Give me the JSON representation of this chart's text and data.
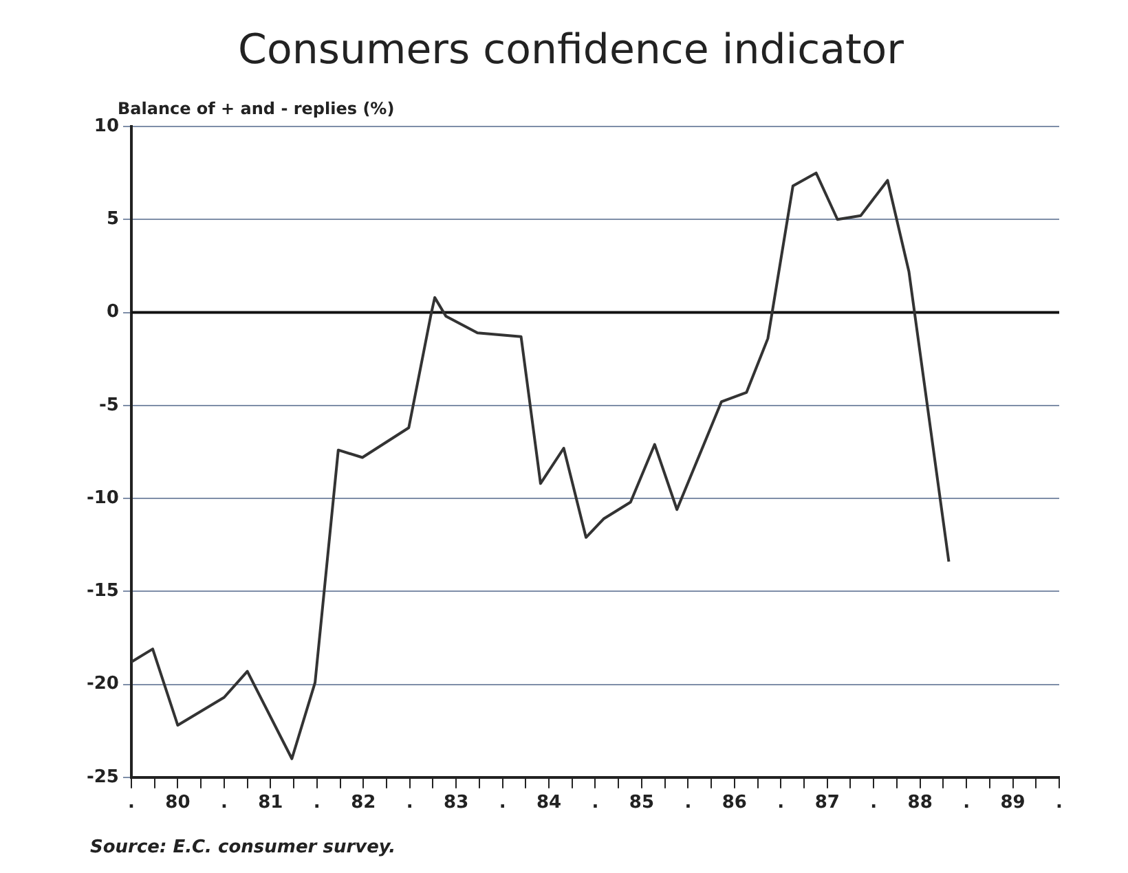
{
  "chart_data": {
    "type": "line",
    "title": "Consumers confidence indicator",
    "ylabel": "Balance of + and - replies (%)",
    "annotations": [
      "Source: E.C. consumer survey."
    ],
    "x": [
      79.5,
      79.73,
      80.0,
      80.5,
      80.75,
      81.23,
      81.48,
      81.73,
      81.99,
      82.49,
      82.73,
      82.77,
      82.89,
      83.23,
      83.7,
      83.91,
      84.16,
      84.4,
      84.59,
      84.88,
      85.14,
      85.38,
      85.86,
      86.13,
      86.36,
      86.63,
      86.88,
      87.11,
      87.36,
      87.65,
      87.88,
      88.31
    ],
    "series": [
      {
        "color": "#333333",
        "values": [
          -18.8,
          -18.1,
          -22.2,
          -20.7,
          -19.3,
          -24.0,
          -19.9,
          -7.4,
          -7.8,
          -6.2,
          -0.1,
          0.8,
          -0.2,
          -1.1,
          -1.3,
          -9.2,
          -7.3,
          -12.1,
          -11.1,
          -10.2,
          -7.1,
          -10.6,
          -4.8,
          -4.3,
          -1.4,
          6.8,
          7.5,
          5.0,
          5.2,
          7.1,
          2.2,
          -13.4
        ]
      }
    ],
    "xlim": [
      79.5,
      89.5
    ],
    "xticks": [
      {
        "value": 79.5,
        "label": "."
      },
      {
        "value": 79.75,
        "label": null
      },
      80,
      {
        "value": 80.25,
        "label": null
      },
      {
        "value": 80.5,
        "label": "."
      },
      {
        "value": 80.75,
        "label": null
      },
      81,
      {
        "value": 81.25,
        "label": null
      },
      {
        "value": 81.5,
        "label": "."
      },
      {
        "value": 81.75,
        "label": null
      },
      82,
      {
        "value": 82.25,
        "label": null
      },
      {
        "value": 82.5,
        "label": "."
      },
      {
        "value": 82.75,
        "label": null
      },
      83,
      {
        "value": 83.25,
        "label": null
      },
      {
        "value": 83.5,
        "label": "."
      },
      {
        "value": 83.75,
        "label": null
      },
      84,
      {
        "value": 84.25,
        "label": null
      },
      {
        "value": 84.5,
        "label": "."
      },
      {
        "value": 84.75,
        "label": null
      },
      85,
      {
        "value": 85.25,
        "label": null
      },
      {
        "value": 85.5,
        "label": "."
      },
      {
        "value": 85.75,
        "label": null
      },
      86,
      {
        "value": 86.25,
        "label": null
      },
      {
        "value": 86.5,
        "label": "."
      },
      {
        "value": 86.75,
        "label": null
      },
      87,
      {
        "value": 87.25,
        "label": null
      },
      {
        "value": 87.5,
        "label": "."
      },
      {
        "value": 87.75,
        "label": null
      },
      88,
      {
        "value": 88.25,
        "label": null
      },
      {
        "value": 88.5,
        "label": "."
      },
      {
        "value": 88.75,
        "label": null
      },
      89,
      {
        "value": 89.25,
        "label": null
      },
      {
        "value": 89.5,
        "label": "."
      }
    ],
    "ylim": [
      -25,
      10
    ],
    "yticks": [
      -25,
      -20,
      -15,
      -10,
      -5,
      0,
      5,
      10
    ],
    "grid": "y",
    "marker": "none",
    "line_style": "solid",
    "ref_lines": [
      {
        "axis": "y",
        "value": 0,
        "color": "#111111"
      }
    ]
  }
}
